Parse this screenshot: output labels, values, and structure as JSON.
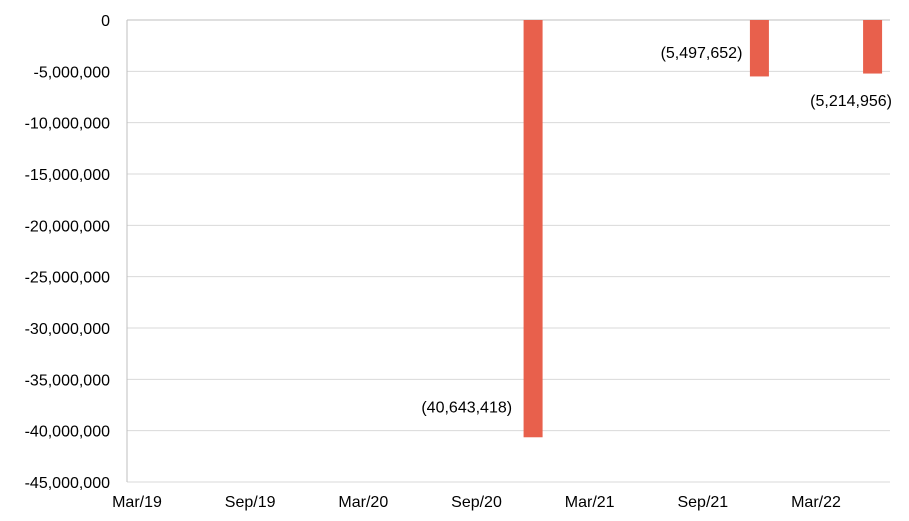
{
  "chart_data": {
    "type": "bar",
    "title": "",
    "xlabel": "",
    "ylabel": "",
    "ylim": [
      -45000000,
      0
    ],
    "yticks": [
      0,
      -5000000,
      -10000000,
      -15000000,
      -20000000,
      -25000000,
      -30000000,
      -35000000,
      -40000000,
      -45000000
    ],
    "ytick_labels": [
      "0",
      "-5,000,000",
      "-10,000,000",
      "-15,000,000",
      "-20,000,000",
      "-25,000,000",
      "-30,000,000",
      "-35,000,000",
      "-40,000,000",
      "-45,000,000"
    ],
    "xtick_labels": [
      "Mar/19",
      "Sep/19",
      "Mar/20",
      "Sep/20",
      "Mar/21",
      "Sep/21",
      "Mar/22"
    ],
    "grid": true,
    "bar_color": "#e8604c",
    "bars": [
      {
        "x": "Dec/20",
        "value": -40643418,
        "label": "(40,643,418)"
      },
      {
        "x": "Dec/21",
        "value": -5497652,
        "label": "(5,497,652)"
      },
      {
        "x": "Jun/22",
        "value": -5214956,
        "label": "(5,214,956)"
      }
    ]
  }
}
